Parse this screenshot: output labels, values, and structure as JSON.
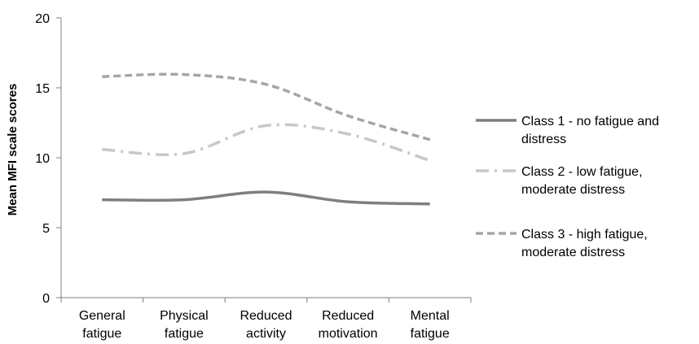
{
  "chart_data": {
    "type": "line",
    "categories": [
      [
        "General",
        "fatigue"
      ],
      [
        "Physical",
        "fatigue"
      ],
      [
        "Reduced",
        "activity"
      ],
      [
        "Reduced",
        "motivation"
      ],
      [
        "Mental",
        "fatigue"
      ]
    ],
    "ylabel": "Mean MFI scale scores",
    "ylim": [
      0,
      20
    ],
    "yticks": [
      0,
      5,
      10,
      15,
      20
    ],
    "grid": false,
    "legend_position": "right",
    "series": [
      {
        "name": [
          "Class 1 - no fatigue and",
          "distress"
        ],
        "values": [
          7.0,
          7.0,
          7.55,
          6.85,
          6.7
        ],
        "color": "#7f7f7f",
        "dash": "solid"
      },
      {
        "name": [
          "Class 2 - low fatigue,",
          "moderate distress"
        ],
        "values": [
          10.6,
          10.3,
          12.3,
          11.7,
          9.8
        ],
        "color": "#c8c8c8",
        "dash": "dashdot"
      },
      {
        "name": [
          "Class 3 - high fatigue,",
          "moderate distress"
        ],
        "values": [
          15.8,
          15.95,
          15.25,
          13.0,
          11.3
        ],
        "color": "#a6a6a6",
        "dash": "dash"
      }
    ]
  }
}
